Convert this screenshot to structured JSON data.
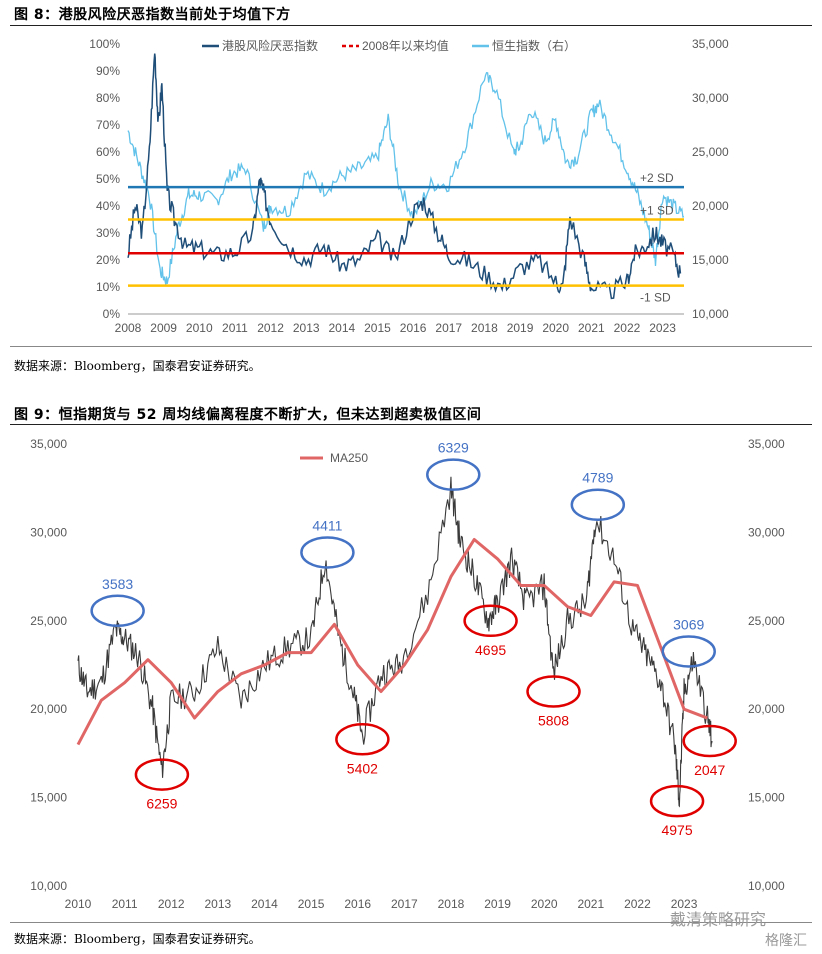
{
  "fig8": {
    "title": "图 8：港股风险厌恶指数当前处于均值下方",
    "source": "数据来源：Bloomberg，国泰君安证券研究。"
  },
  "fig9": {
    "title": "图 9：恒指期货与 52 周均线偏离程度不断扩大，但未达到超卖极值区间",
    "source": "数据来源：Bloomberg，国泰君安证券研究。"
  },
  "watermark": {
    "wechat": "戴清策略研究",
    "logo": "格隆汇"
  },
  "chart_data": [
    {
      "type": "line",
      "x_ticks": [
        "2008",
        "2009",
        "2010",
        "2011",
        "2012",
        "2013",
        "2014",
        "2015",
        "2016",
        "2017",
        "2018",
        "2019",
        "2020",
        "2021",
        "2022",
        "2023"
      ],
      "xlim": [
        2008,
        2023.6
      ],
      "ylim_left": [
        0,
        100
      ],
      "ylim_right": [
        10000,
        35000
      ],
      "y_ticks_left": [
        "0%",
        "10%",
        "20%",
        "30%",
        "40%",
        "50%",
        "60%",
        "70%",
        "80%",
        "90%",
        "100%"
      ],
      "y_ticks_right": [
        "10,000",
        "15,000",
        "20,000",
        "25,000",
        "30,000",
        "35,000"
      ],
      "legend_position": "top",
      "series": [
        {
          "name": "港股风险厌恶指数",
          "axis": "left",
          "color": "#1f4e79",
          "x": [
            2008.0,
            2008.2,
            2008.4,
            2008.6,
            2008.75,
            2008.85,
            2008.95,
            2009.1,
            2009.3,
            2009.6,
            2010.0,
            2010.5,
            2011.0,
            2011.5,
            2011.7,
            2011.8,
            2012.0,
            2012.5,
            2013.0,
            2013.5,
            2014.0,
            2014.5,
            2015.0,
            2015.5,
            2016.0,
            2016.3,
            2016.7,
            2017.0,
            2017.5,
            2018.0,
            2018.5,
            2019.0,
            2019.5,
            2020.0,
            2020.2,
            2020.4,
            2020.8,
            2021.0,
            2021.5,
            2022.0,
            2022.2,
            2022.5,
            2022.8,
            2023.0,
            2023.3,
            2023.5
          ],
          "values": [
            22,
            40,
            30,
            60,
            98,
            70,
            85,
            45,
            35,
            25,
            24,
            22,
            23,
            30,
            50,
            45,
            35,
            25,
            20,
            25,
            18,
            20,
            28,
            20,
            38,
            42,
            30,
            22,
            20,
            15,
            10,
            17,
            20,
            12,
            10,
            36,
            20,
            10,
            8,
            12,
            22,
            25,
            30,
            26,
            22,
            15
          ]
        },
        {
          "name": "2008年以来均值",
          "axis": "left",
          "color": "#e00000",
          "x": [
            2008,
            2023.6
          ],
          "values": [
            22.5,
            22.5
          ]
        },
        {
          "name": "恒生指数（右）",
          "axis": "right",
          "color": "#62c2ea",
          "x": [
            2008.0,
            2008.3,
            2008.6,
            2008.9,
            2009.1,
            2009.4,
            2009.7,
            2010.0,
            2010.5,
            2010.9,
            2011.3,
            2011.8,
            2012.0,
            2012.5,
            2013.0,
            2013.5,
            2014.0,
            2014.5,
            2015.0,
            2015.3,
            2015.6,
            2016.0,
            2016.5,
            2017.0,
            2017.5,
            2018.0,
            2018.3,
            2018.8,
            2019.0,
            2019.3,
            2019.7,
            2020.0,
            2020.3,
            2020.6,
            2021.0,
            2021.2,
            2021.6,
            2022.0,
            2022.3,
            2022.6,
            2022.8,
            2023.0,
            2023.3,
            2023.6
          ],
          "values": [
            27000,
            24000,
            21000,
            14000,
            13000,
            18000,
            21000,
            21000,
            20500,
            23000,
            23500,
            18000,
            20000,
            19500,
            23000,
            21500,
            22800,
            23500,
            24500,
            28000,
            22000,
            19000,
            22000,
            22000,
            26000,
            32000,
            31000,
            25000,
            25500,
            29000,
            26000,
            28000,
            24000,
            24500,
            28500,
            29500,
            26500,
            23500,
            21000,
            18000,
            15000,
            21000,
            20000,
            19000
          ]
        }
      ],
      "reference_lines": [
        {
          "label": "+2 SD",
          "value": 47,
          "color": "#1f77b4"
        },
        {
          "label": "+1 SD",
          "value": 35,
          "color": "#ffc000"
        },
        {
          "label": "",
          "value": 22.5,
          "color": "#e00000"
        },
        {
          "label": "-1 SD",
          "value": 10.5,
          "color": "#ffc000"
        }
      ]
    },
    {
      "type": "line",
      "x_ticks": [
        "2010",
        "2011",
        "2012",
        "2013",
        "2014",
        "2015",
        "2016",
        "2017",
        "2018",
        "2019",
        "2020",
        "2021",
        "2022",
        "2023"
      ],
      "xlim": [
        2010,
        2024.2
      ],
      "ylim": [
        10000,
        35000
      ],
      "y_ticks": [
        "10,000",
        "15,000",
        "20,000",
        "25,000",
        "30,000",
        "35,000"
      ],
      "legend_position": "top-left",
      "series": [
        {
          "name": "",
          "color": "#3a3a3a",
          "x": [
            2010.0,
            2010.2,
            2010.5,
            2010.8,
            2011.0,
            2011.3,
            2011.6,
            2011.8,
            2012.0,
            2012.5,
            2013.0,
            2013.5,
            2014.0,
            2014.5,
            2015.0,
            2015.3,
            2015.6,
            2015.9,
            2016.1,
            2016.5,
            2016.9,
            2017.5,
            2018.0,
            2018.2,
            2018.5,
            2018.8,
            2019.0,
            2019.3,
            2019.6,
            2020.0,
            2020.2,
            2020.5,
            2020.9,
            2021.1,
            2021.5,
            2021.9,
            2022.2,
            2022.5,
            2022.8,
            2022.9,
            2023.0,
            2023.2,
            2023.5,
            2023.6
          ],
          "values": [
            22500,
            21000,
            21500,
            24500,
            24000,
            23000,
            20000,
            16500,
            20500,
            21000,
            23500,
            20500,
            22500,
            23500,
            24000,
            28500,
            24000,
            21000,
            18500,
            22000,
            22500,
            26500,
            32500,
            29500,
            27500,
            25000,
            26000,
            28500,
            26000,
            27000,
            22000,
            25000,
            26000,
            30800,
            28500,
            24500,
            23000,
            21500,
            18000,
            14800,
            21000,
            22800,
            19500,
            18200
          ]
        },
        {
          "name": "MA250",
          "color": "#e06666",
          "x": [
            2010.0,
            2010.5,
            2011.0,
            2011.5,
            2012.0,
            2012.5,
            2013.0,
            2013.5,
            2014.0,
            2014.5,
            2015.0,
            2015.5,
            2016.0,
            2016.5,
            2017.0,
            2017.5,
            2018.0,
            2018.5,
            2019.0,
            2019.5,
            2020.0,
            2020.5,
            2021.0,
            2021.5,
            2022.0,
            2022.5,
            2023.0,
            2023.5
          ],
          "values": [
            18000,
            20500,
            21500,
            22800,
            21500,
            19500,
            21000,
            22000,
            22500,
            23200,
            23200,
            24800,
            22500,
            21000,
            22500,
            24500,
            27500,
            29600,
            28500,
            27000,
            27000,
            25800,
            25300,
            27200,
            27000,
            23500,
            20000,
            19500
          ]
        }
      ],
      "annotations": [
        {
          "label": "3583",
          "type": "peak",
          "x": 2010.85,
          "value": 25000,
          "color": "#4472c4"
        },
        {
          "label": "6259",
          "type": "trough",
          "x": 2011.8,
          "value": 16300,
          "color": "#e00000"
        },
        {
          "label": "4411",
          "type": "peak",
          "x": 2015.35,
          "value": 28300,
          "color": "#4472c4"
        },
        {
          "label": "5402",
          "type": "trough",
          "x": 2016.1,
          "value": 18300,
          "color": "#e00000"
        },
        {
          "label": "6329",
          "type": "peak",
          "x": 2018.05,
          "value": 32700,
          "color": "#4472c4"
        },
        {
          "label": "4695",
          "type": "trough",
          "x": 2018.85,
          "value": 25000,
          "color": "#e00000"
        },
        {
          "label": "5808",
          "type": "trough",
          "x": 2020.2,
          "value": 21000,
          "color": "#e00000"
        },
        {
          "label": "4789",
          "type": "peak",
          "x": 2021.15,
          "value": 31000,
          "color": "#4472c4"
        },
        {
          "label": "3069",
          "type": "peak",
          "x": 2023.1,
          "value": 22700,
          "color": "#4472c4"
        },
        {
          "label": "4975",
          "type": "trough",
          "x": 2022.85,
          "value": 14800,
          "color": "#e00000"
        },
        {
          "label": "2047",
          "type": "trough",
          "x": 2023.55,
          "value": 18200,
          "color": "#e00000"
        }
      ]
    }
  ]
}
